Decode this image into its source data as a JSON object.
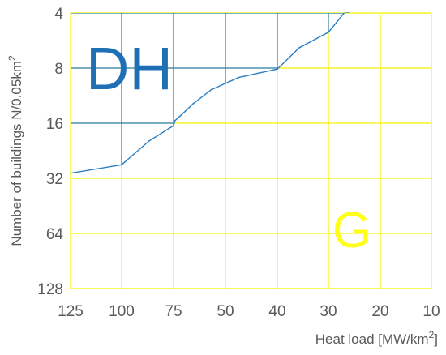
{
  "chart_data": {
    "type": "line",
    "title": "",
    "xlabel": "Heat load [MW/km",
    "xlabel_sup": "2",
    "xlabel_end": "]",
    "ylabel": "Number of buildings N/0.05km",
    "ylabel_sup": "2",
    "x_scale": "reciprocal",
    "x_ticks": [
      125,
      100,
      75,
      50,
      40,
      30,
      20,
      10
    ],
    "x_tick_labels": [
      "125",
      "100",
      "75",
      "50",
      "40",
      "30",
      "20",
      "10"
    ],
    "y_scale": "log2",
    "y_ticks": [
      4,
      8,
      16,
      32,
      64,
      128
    ],
    "y_tick_labels": [
      "4",
      "8",
      "16",
      "32",
      "64",
      "128"
    ],
    "xlim": [
      125,
      10
    ],
    "ylim": [
      128,
      4
    ],
    "grid": true,
    "series": [
      {
        "x": [
          125,
          100,
          85,
          75,
          74,
          70,
          63,
          55,
          47,
          40,
          35,
          30,
          25
        ],
        "y": [
          30,
          27,
          20,
          16.5,
          15.5,
          14.5,
          12.5,
          10.5,
          9,
          8.1,
          6.2,
          5.1,
          3.7
        ]
      }
    ],
    "regions": [
      {
        "label": "DH",
        "color": "#1f6fb5",
        "grid_color": "#2a7fc4"
      },
      {
        "label": "G",
        "color": "#ffff1a",
        "grid_color": "#f2f200"
      }
    ]
  }
}
